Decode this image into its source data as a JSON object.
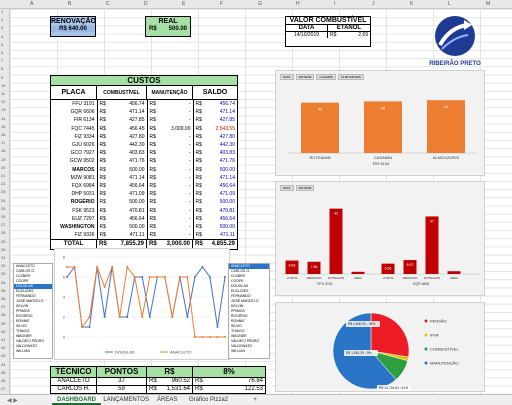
{
  "columns": [
    "A",
    "B",
    "C",
    "D",
    "E",
    "F",
    "G",
    "H",
    "I",
    "J",
    "K",
    "L",
    "M"
  ],
  "rows": [
    "1",
    "2",
    "3",
    "4",
    "5",
    "6",
    "7",
    "8",
    "9",
    "10",
    "11",
    "12",
    "13",
    "14",
    "15",
    "16",
    "17",
    "18",
    "19",
    "20",
    "21",
    "22",
    "23",
    "24",
    "25",
    "26",
    "27",
    "28",
    "29",
    "30",
    "31",
    "32",
    "33",
    "34",
    "35",
    "36",
    "37",
    "38",
    "39",
    "40",
    "41",
    "42",
    "43",
    "44",
    "45",
    "46",
    "47"
  ],
  "renovacao": {
    "label": "RENOVAÇÃO",
    "value": "R$ 640.00"
  },
  "real": {
    "label": "REAL",
    "currency": "R$",
    "value": "500.00"
  },
  "combustivel": {
    "title": "VALOR COMBUSTÍVEL",
    "date_header": "DATA",
    "etanol_header": "ETANOL",
    "date": "14/10/2019",
    "currency": "R$",
    "price": "2.69"
  },
  "logo": {
    "caption": "RIBEIRÃO PRETO"
  },
  "custos": {
    "title": "CUSTOS",
    "headers": [
      "PLACA",
      "COMBUSTÍVEL",
      "MANUTENÇÃO",
      "SALDO"
    ],
    "rows": [
      {
        "placa": "FFU 3191",
        "comb": "456.74",
        "manut": "-",
        "saldo": "456.74",
        "s": "pos"
      },
      {
        "placa": "GQR 6606",
        "comb": "471.14",
        "manut": "-",
        "saldo": "471.14",
        "s": "pos"
      },
      {
        "placa": "FIR 6134",
        "comb": "427.85",
        "manut": "-",
        "saldo": "427.85",
        "s": "pos"
      },
      {
        "placa": "FQC 7445",
        "comb": "456.45",
        "manut": "3,000.00",
        "saldo": "2,543.55",
        "s": "neg"
      },
      {
        "placa": "FIZ 9334",
        "comb": "427.80",
        "manut": "-",
        "saldo": "427.80",
        "s": "pos"
      },
      {
        "placa": "GJU 6026",
        "comb": "442.30",
        "manut": "-",
        "saldo": "442.30",
        "s": "pos"
      },
      {
        "placa": "GCO 7927",
        "comb": "403.83",
        "manut": "-",
        "saldo": "403.83",
        "s": "pos"
      },
      {
        "placa": "GCW 9502",
        "comb": "471.76",
        "manut": "-",
        "saldo": "471.76",
        "s": "pos"
      },
      {
        "placa": "MARCOS",
        "comb": "500.00",
        "manut": "-",
        "saldo": "500.00",
        "s": "pos",
        "bold": true
      },
      {
        "placa": "MJW 9081",
        "comb": "471.14",
        "manut": "-",
        "saldo": "471.14",
        "s": "pos"
      },
      {
        "placa": "FQX 6984",
        "comb": "456.64",
        "manut": "-",
        "saldo": "456.64",
        "s": "pos"
      },
      {
        "placa": "DHP 5031",
        "comb": "471.09",
        "manut": "-",
        "saldo": "471.09",
        "s": "pos"
      },
      {
        "placa": "ROGÉRIO",
        "comb": "500.00",
        "manut": "-",
        "saldo": "500.00",
        "s": "pos",
        "bold": true
      },
      {
        "placa": "FSK 9523",
        "comb": "470.81",
        "manut": "-",
        "saldo": "470.81",
        "s": "pos"
      },
      {
        "placa": "EUZ 7297",
        "comb": "456.64",
        "manut": "-",
        "saldo": "456.64",
        "s": "pos"
      },
      {
        "placa": "WASHINGTON",
        "comb": "500.00",
        "manut": "-",
        "saldo": "500.00",
        "s": "pos",
        "bold": true
      },
      {
        "placa": "FIZ 9336",
        "comb": "471.11",
        "manut": "-",
        "saldo": "471.11",
        "s": "pos"
      }
    ],
    "currency": "R$",
    "total": {
      "label": "TOTAL",
      "comb": "7,855.29",
      "manut": "3,000.00",
      "saldo": "4,855.29"
    }
  },
  "chart1": {
    "labels": [
      "ROTEAMIN",
      "CASAMIN",
      "ALMOXZORIS"
    ],
    "values": [
      42,
      43,
      44
    ],
    "color": "#ed7d31",
    "axis_label": "FIR 6134",
    "chips": [
      "DATA",
      "ROTEAM",
      "CASAMIN",
      "ALMOXZORIS"
    ]
  },
  "chart2": {
    "groups": [
      {
        "name": "FFU 3191",
        "labels": [
          "LITROS",
          "MÉDIA/KM",
          "ROTEAMIN",
          "ÁREA"
        ],
        "values": [
          8.66,
          7.86,
          42,
          1.4
        ]
      },
      {
        "name": "GQR 6606",
        "labels": [
          "LITROS",
          "MÉDIA/KM",
          "ROTEAMIN",
          "ÁREA"
        ],
        "values": [
          6.66,
          8.97,
          37,
          1.8
        ]
      }
    ],
    "value_labels": [
      "8.66",
      "7.86",
      "42",
      "",
      "6.66",
      "8.97",
      "37",
      ""
    ],
    "color": "#c00000",
    "chips": [
      "DATA",
      "ROTEAM"
    ]
  },
  "chart3": {
    "series": [
      {
        "name": "DOUGLAS",
        "color": "#4472c4",
        "values": [
          6,
          7,
          1,
          1,
          7,
          2,
          7,
          2,
          2,
          6,
          6,
          2,
          6,
          6,
          2,
          6,
          2,
          6,
          7,
          6,
          1,
          6
        ]
      },
      {
        "name": "ANACLETO",
        "color": "#ed7d31",
        "values": [
          7,
          7,
          1,
          2,
          7,
          5,
          7,
          2,
          7,
          6,
          2,
          6,
          6,
          6,
          2,
          6,
          6,
          0,
          0,
          0,
          0,
          0
        ]
      }
    ],
    "y_ticks": [
      "8",
      "6",
      "4",
      "2",
      "0"
    ],
    "ylim": [
      0,
      8
    ]
  },
  "slicer_left": {
    "items": [
      "ANACLETO",
      "CARLOS O.",
      "CLEBER",
      "COOPE",
      "DOUGLAS",
      "EUCLIDES",
      "FERNANDO",
      "JOSÉ MARCELO",
      "KELVIN",
      "PRIMOS",
      "ROGÉRIO",
      "RONNIE",
      "SILVIO",
      "THIAGO",
      "WAGNER",
      "VALDECI PEDRO",
      "VALDONATO",
      "WILLIAN"
    ],
    "selected": "DOUGLAS"
  },
  "slicer_right": {
    "items": [
      "ANACLETO",
      "CARLOS O.",
      "CLEBER",
      "COOPE",
      "DOUGLAS",
      "EUCLIDES",
      "FERNANDO",
      "JOSÉ MARCELO",
      "KELVIN",
      "PRIMOS",
      "ROGÉRIO",
      "RONNIE",
      "SILVIO",
      "THIAGO",
      "WAGNER",
      "VALDECI PEDRO",
      "VALDONATO",
      "WILLIAN"
    ],
    "selected": "ANACLETO"
  },
  "pie": {
    "slices": [
      {
        "name": "PENSÃO",
        "value": 4800,
        "color": "#ed1c24"
      },
      {
        "name": "IPVA",
        "value": 280,
        "color": "#f0c000"
      },
      {
        "name": "COMBUSTÍVEL",
        "value": 1651,
        "color": "#2e9e3e"
      },
      {
        "name": "MANUTENÇÃO",
        "value": 10715,
        "color": "#2a75c8"
      }
    ],
    "labels": [
      "R$ 4,800.00 ; 28%",
      "R$ 1,651.29 ; 9%",
      "R$ 10,715.63 ; 61%"
    ]
  },
  "bottom": {
    "headers": [
      "TÉCNICO",
      "PONTOS",
      "R$",
      "8%"
    ],
    "rows": [
      {
        "tecnico": "ANACLETO",
        "pontos": "37",
        "cur": "R$",
        "valor": "960.52",
        "cur2": "R$",
        "pct": "76.84"
      },
      {
        "tecnico": "CARLOS H.",
        "pontos": "59",
        "cur": "R$",
        "valor": "1,531.64",
        "cur2": "R$",
        "pct": "122.53"
      }
    ]
  },
  "tabs": [
    "DASHBOARD",
    "LANÇAMENTOS",
    "ÁREAS",
    "Gráfico Pizza2"
  ],
  "active_tab": "DASHBOARD"
}
